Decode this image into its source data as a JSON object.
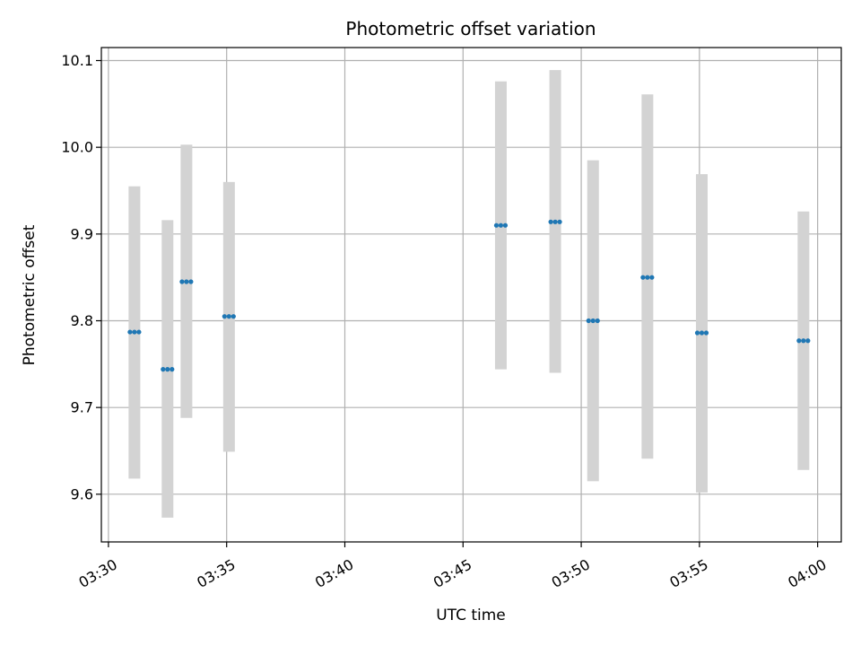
{
  "chart_data": {
    "type": "scatter",
    "title": "Photometric offset variation",
    "xlabel": "UTC time",
    "ylabel": "Photometric offset",
    "x_unit": "time HH:MM (UTC)",
    "xlim": [
      "03:29.7",
      "04:01.0"
    ],
    "ylim": [
      9.545,
      10.115
    ],
    "x_ticks": [
      "03:30",
      "03:35",
      "03:40",
      "03:45",
      "03:50",
      "03:55",
      "04:00"
    ],
    "y_ticks": [
      9.6,
      9.7,
      9.8,
      9.9,
      10.0,
      10.1
    ],
    "y_tick_labels": [
      "9.6",
      "9.7",
      "9.8",
      "9.9",
      "10.0",
      "10.1"
    ],
    "grid": true,
    "marker_color": "#1f77b4",
    "errorbar_color": "#d3d3d3",
    "points": [
      {
        "time": "03:31.1",
        "value": 9.787,
        "err_low": 9.618,
        "err_high": 9.955
      },
      {
        "time": "03:32.5",
        "value": 9.744,
        "err_low": 9.573,
        "err_high": 9.916
      },
      {
        "time": "03:33.3",
        "value": 9.845,
        "err_low": 9.688,
        "err_high": 10.003
      },
      {
        "time": "03:35.1",
        "value": 9.805,
        "err_low": 9.649,
        "err_high": 9.96
      },
      {
        "time": "03:46.6",
        "value": 9.91,
        "err_low": 9.744,
        "err_high": 10.076
      },
      {
        "time": "03:48.9",
        "value": 9.914,
        "err_low": 9.74,
        "err_high": 10.089
      },
      {
        "time": "03:50.5",
        "value": 9.8,
        "err_low": 9.615,
        "err_high": 9.985
      },
      {
        "time": "03:52.8",
        "value": 9.85,
        "err_low": 9.641,
        "err_high": 10.061
      },
      {
        "time": "03:55.1",
        "value": 9.786,
        "err_low": 9.602,
        "err_high": 9.969
      },
      {
        "time": "03:59.4",
        "value": 9.777,
        "err_low": 9.628,
        "err_high": 9.926
      }
    ]
  }
}
